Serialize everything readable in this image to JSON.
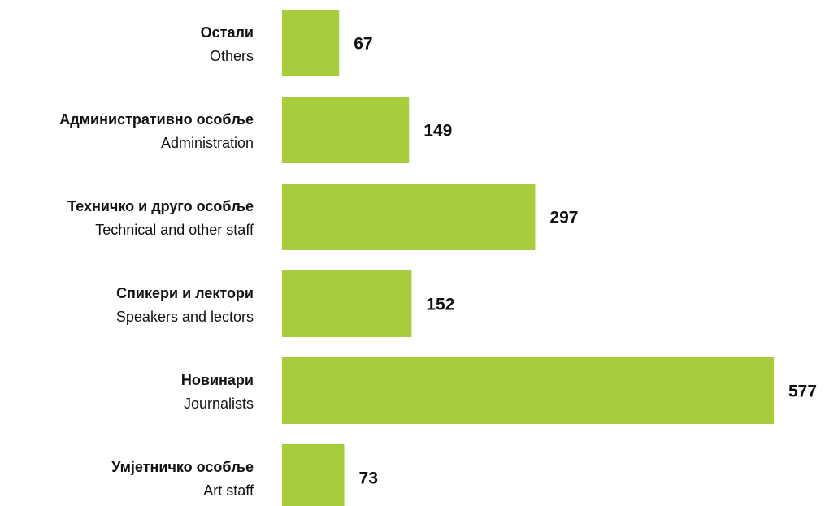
{
  "chart_data": {
    "type": "bar",
    "orientation": "horizontal",
    "categories": [
      "Остали",
      "Административно особље",
      "Техничко и друго особље",
      "Спикери и лектори",
      "Новинари",
      "Умјетничко особље"
    ],
    "categories_en": [
      "Others",
      "Administration",
      "Technical and other staff",
      "Speakers and lectors",
      "Journalists",
      "Art staff"
    ],
    "values": [
      67,
      149,
      297,
      152,
      577,
      73
    ],
    "color": "#a8cd3c",
    "xlim": [
      0,
      577
    ]
  }
}
